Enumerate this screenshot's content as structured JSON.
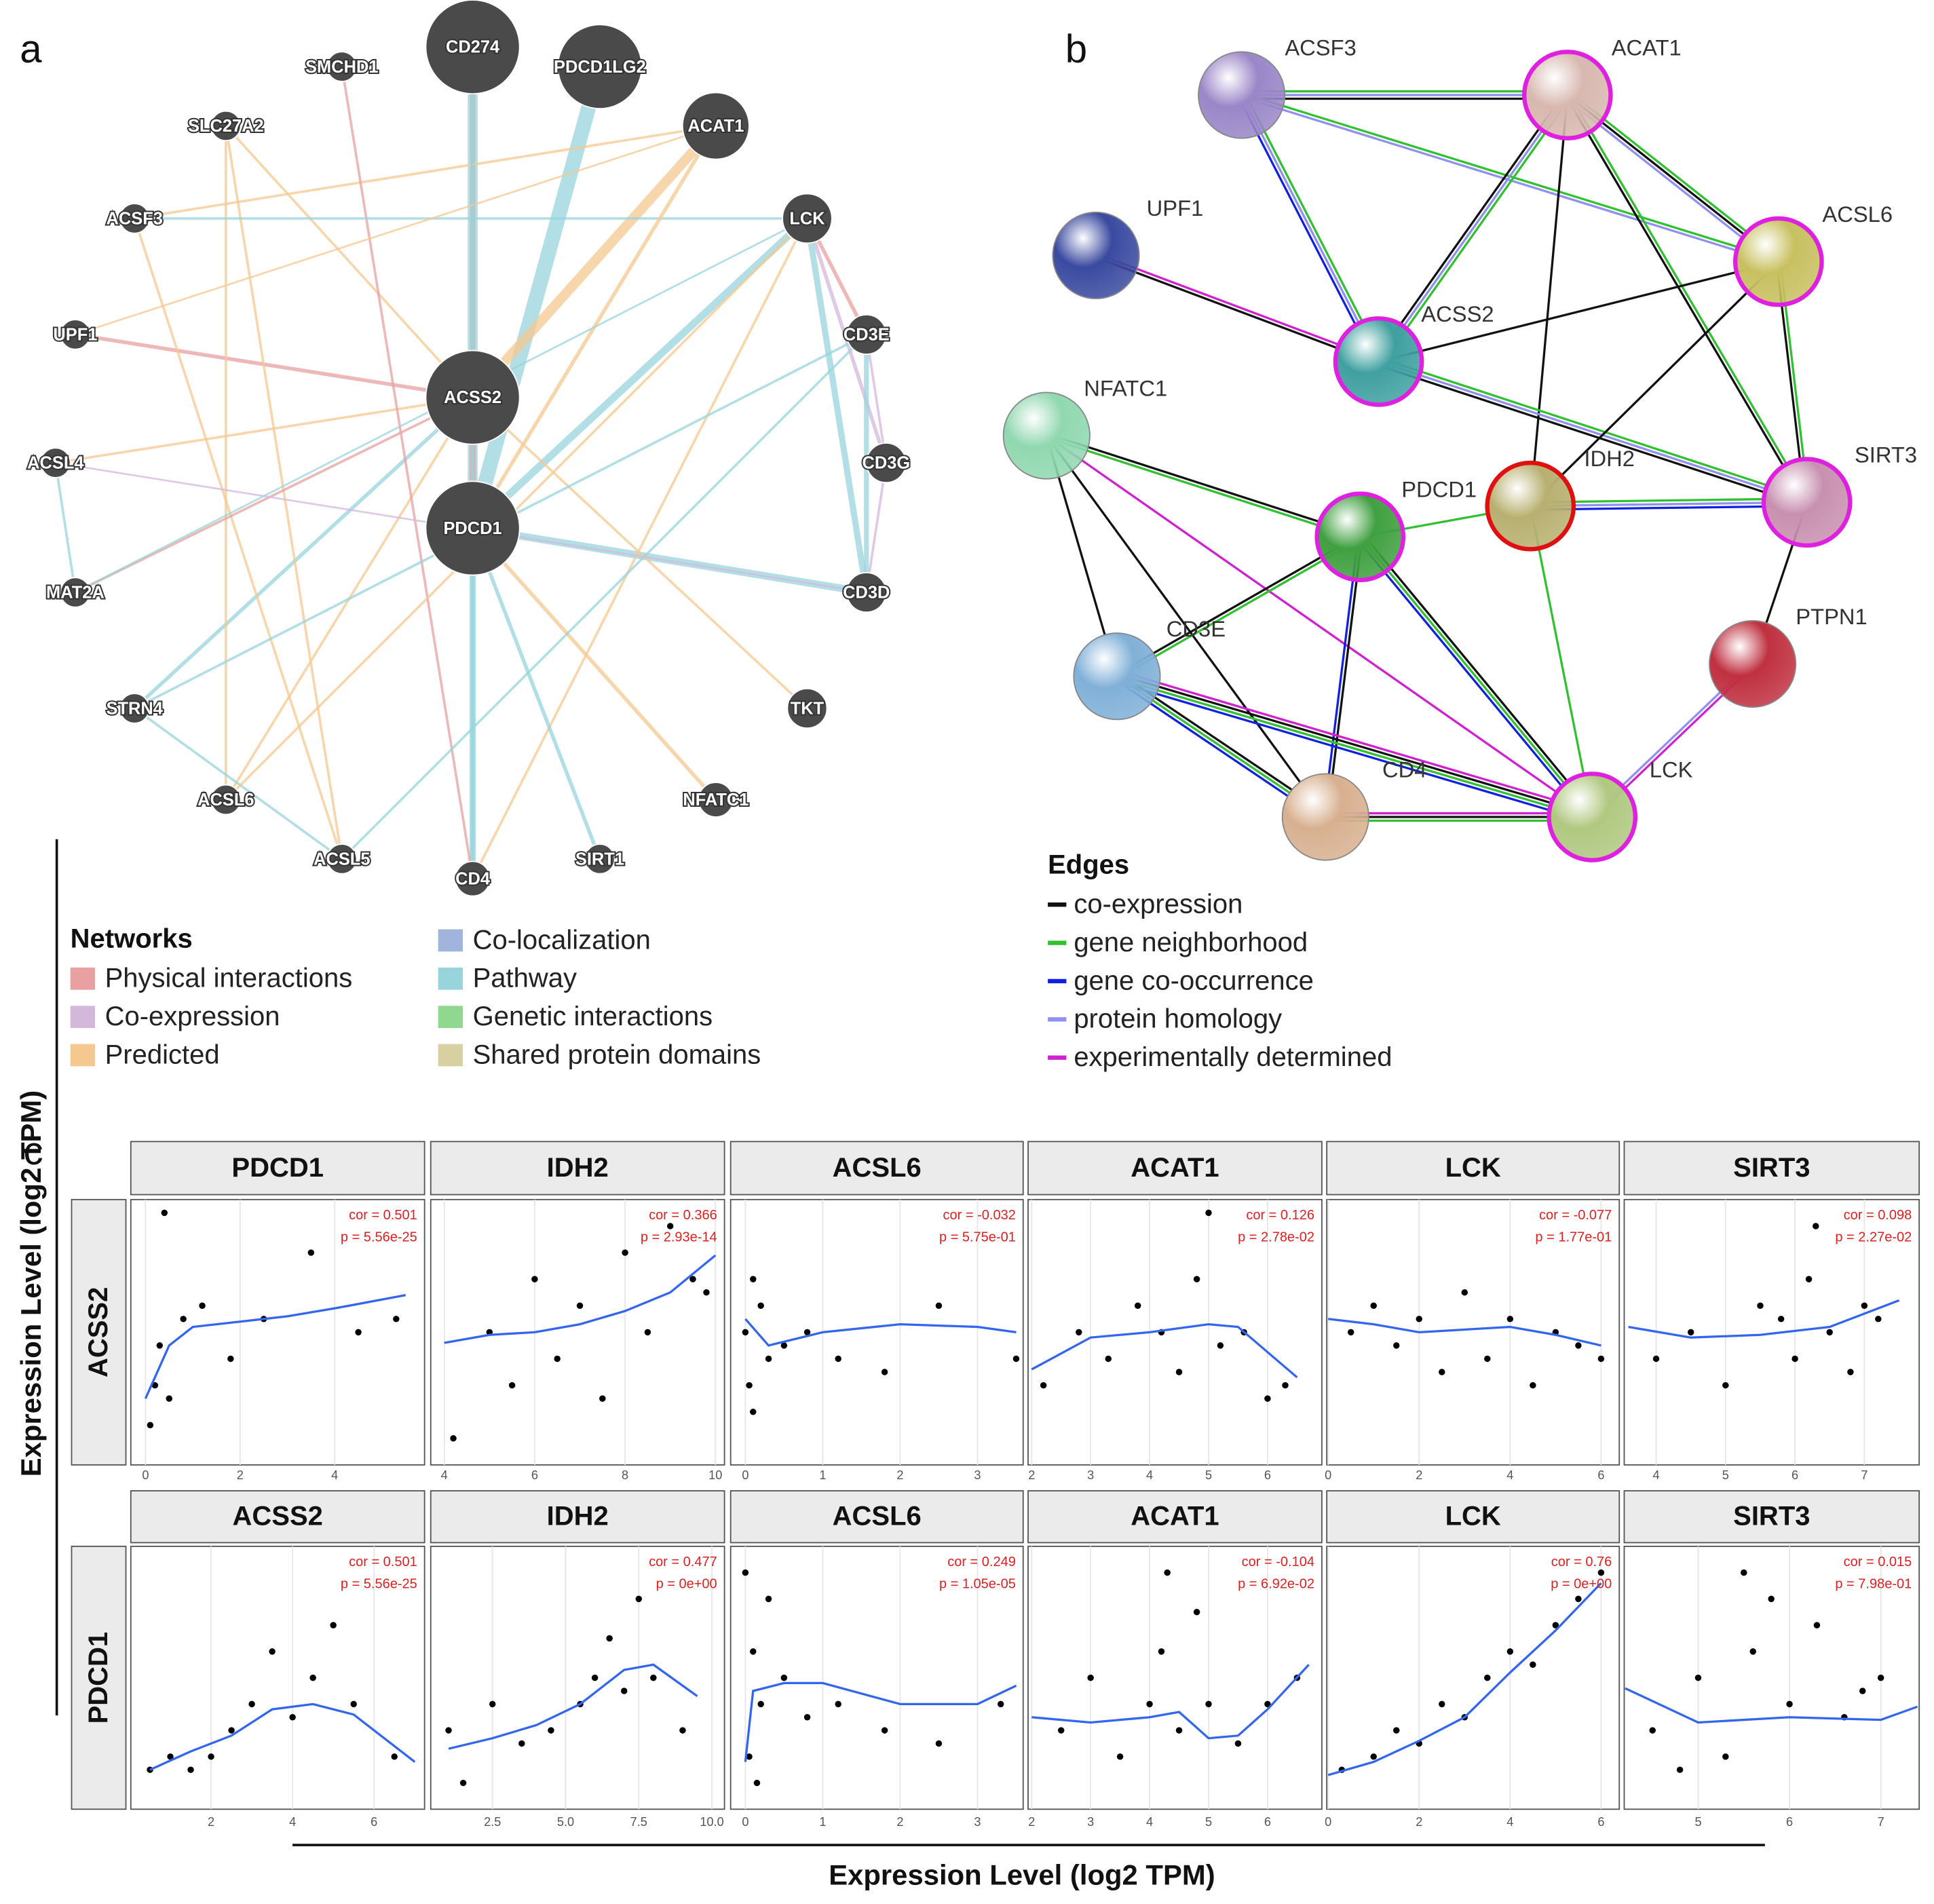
{
  "panel_a": {
    "letter": "a",
    "nodes": [
      "CD274",
      "PDCD1LG2",
      "SMCHD1",
      "ACAT1",
      "SLC27A2",
      "LCK",
      "ACSF3",
      "CD3E",
      "UPF1",
      "ACSS2",
      "CD3G",
      "ACSL4",
      "PDCD1",
      "CD3D",
      "MAT2A",
      "TKT",
      "STRN4",
      "NFATC1",
      "ACSL6",
      "SIRT1",
      "ACSL5",
      "CD4"
    ],
    "legend": {
      "title": "Networks",
      "items": [
        {
          "name": "Physical interactions",
          "color": "#e8a0a0"
        },
        {
          "name": "Co-expression",
          "color": "#d4b8dc"
        },
        {
          "name": "Predicted",
          "color": "#f5c890"
        },
        {
          "name": "Co-localization",
          "color": "#a0b4dc"
        },
        {
          "name": "Pathway",
          "color": "#98d4dc"
        },
        {
          "name": "Genetic interactions",
          "color": "#90d890"
        },
        {
          "name": "Shared protein domains",
          "color": "#d8d0a0"
        }
      ]
    }
  },
  "panel_b": {
    "letter": "b",
    "nodes": [
      "ACSF3",
      "ACAT1",
      "UPF1",
      "ACSL6",
      "ACSS2",
      "NFATC1",
      "IDH2",
      "SIRT3",
      "PDCD1",
      "PTPN1",
      "CD3E",
      "LCK",
      "CD4"
    ],
    "legend": {
      "title": "Edges",
      "items": [
        {
          "name": "co-expression",
          "color": "#111111"
        },
        {
          "name": "gene neighborhood",
          "color": "#30c030"
        },
        {
          "name": "gene co-occurrence",
          "color": "#1020e0"
        },
        {
          "name": "protein homology",
          "color": "#9090f0"
        },
        {
          "name": "experimentally determined",
          "color": "#d020d0"
        }
      ]
    }
  },
  "panel_c": {
    "letter": "c",
    "type": "scatter",
    "ylabel": "Expression Level (log2 TPM)",
    "xlabel": "Expression Level (log2 TPM)",
    "rows": [
      {
        "name": "ACSS2",
        "panels": [
          {
            "title": "PDCD1",
            "annotations": [
              "cor = 0.501",
              "p = 5.56e-25"
            ],
            "xlim": [
              -0.31,
              5.9
            ],
            "xticks": [
              0,
              2,
              4
            ],
            "ylim": [
              0,
              10
            ],
            "points": {
              "x": [
                0.1,
                0.2,
                0.3,
                0.5,
                0.8,
                1.2,
                1.8,
                2.5,
                3.5,
                4.5,
                5.3,
                0.4
              ],
              "y": [
                1.5,
                3,
                4.5,
                2.5,
                5.5,
                6,
                4,
                5.5,
                8,
                5,
                5.5,
                9.5
              ]
            },
            "fit": {
              "x": [
                0,
                0.5,
                1,
                2,
                3,
                4,
                5.5
              ],
              "y": [
                2.5,
                4.5,
                5.2,
                5.4,
                5.6,
                5.9,
                6.4
              ]
            }
          },
          {
            "title": "IDH2",
            "annotations": [
              "cor = 0.366",
              "p = 2.93e-14"
            ],
            "xlim": [
              3.7,
              10.2
            ],
            "xticks": [
              4,
              6,
              8,
              10
            ],
            "ylim": [
              0,
              10
            ],
            "points": {
              "x": [
                4.2,
                5,
                5.5,
                6,
                6.5,
                7,
                7.5,
                8,
                8.5,
                9,
                9.5,
                9.8
              ],
              "y": [
                1,
                5,
                3,
                7,
                4,
                6,
                2.5,
                8,
                5,
                9,
                7,
                6.5
              ]
            },
            "fit": {
              "x": [
                4,
                5,
                6,
                7,
                8,
                9,
                10
              ],
              "y": [
                4.6,
                4.9,
                5.0,
                5.3,
                5.8,
                6.5,
                7.9
              ]
            }
          },
          {
            "title": "ACSL6",
            "annotations": [
              "cor = -0.032",
              "p = 5.75e-01"
            ],
            "xlim": [
              -0.19,
              3.59
            ],
            "xticks": [
              0,
              1,
              2,
              3
            ],
            "ylim": [
              0,
              10
            ],
            "points": {
              "x": [
                0,
                0.05,
                0.1,
                0.1,
                0.2,
                0.3,
                0.5,
                0.8,
                1.2,
                1.8,
                2.5,
                3.5
              ],
              "y": [
                5,
                3,
                7,
                2,
                6,
                4,
                4.5,
                5,
                4,
                3.5,
                6,
                4
              ]
            },
            "fit": {
              "x": [
                0,
                0.3,
                1,
                2,
                3,
                3.5
              ],
              "y": [
                5.5,
                4.5,
                5,
                5.3,
                5.2,
                5
              ]
            }
          },
          {
            "title": "ACAT1",
            "annotations": [
              "cor = 0.126",
              "p = 2.78e-02"
            ],
            "xlim": [
              1.94,
              6.92
            ],
            "xticks": [
              2,
              3,
              4,
              5,
              6
            ],
            "ylim": [
              0,
              10
            ],
            "points": {
              "x": [
                2.2,
                2.8,
                3.3,
                3.8,
                4.2,
                4.5,
                4.8,
                5.2,
                5.6,
                6,
                6.3,
                5.0
              ],
              "y": [
                3,
                5,
                4,
                6,
                5,
                3.5,
                7,
                4.5,
                5,
                2.5,
                3,
                9.5
              ]
            },
            "fit": {
              "x": [
                2,
                3,
                4,
                5,
                5.5,
                6.5
              ],
              "y": [
                3.6,
                4.8,
                5.0,
                5.3,
                5.2,
                3.3
              ]
            }
          },
          {
            "title": "LCK",
            "annotations": [
              "cor = -0.077",
              "p = 1.77e-01"
            ],
            "xlim": [
              -0.03,
              6.4
            ],
            "xticks": [
              0,
              2,
              4,
              6
            ],
            "ylim": [
              0,
              10
            ],
            "points": {
              "x": [
                0.5,
                1,
                1.5,
                2,
                2.5,
                3,
                3.5,
                4,
                4.5,
                5,
                5.5,
                6
              ],
              "y": [
                5,
                6,
                4.5,
                5.5,
                3.5,
                6.5,
                4,
                5.5,
                3,
                5,
                4.5,
                4
              ]
            },
            "fit": {
              "x": [
                0,
                1,
                2,
                3,
                4,
                5,
                6
              ],
              "y": [
                5.5,
                5.3,
                5.0,
                5.1,
                5.2,
                4.9,
                4.5
              ]
            }
          },
          {
            "title": "SIRT3",
            "annotations": [
              "cor = 0.098",
              "p = 2.27e-02"
            ],
            "xlim": [
              3.54,
              7.79
            ],
            "xticks": [
              4,
              5,
              6,
              7
            ],
            "ylim": [
              0,
              10
            ],
            "points": {
              "x": [
                4,
                4.5,
                5,
                5.5,
                5.8,
                6,
                6.2,
                6.5,
                6.8,
                7,
                7.2,
                6.3
              ],
              "y": [
                4,
                5,
                3,
                6,
                5.5,
                4,
                7,
                5,
                3.5,
                6,
                5.5,
                9
              ]
            },
            "fit": {
              "x": [
                3.6,
                4.5,
                5.5,
                6.5,
                7.5
              ],
              "y": [
                5.2,
                4.8,
                4.9,
                5.2,
                6.2
              ]
            }
          }
        ]
      },
      {
        "name": "PDCD1",
        "panels": [
          {
            "title": "ACSS2",
            "annotations": [
              "cor = 0.501",
              "p = 5.56e-25"
            ],
            "xlim": [
              0.03,
              7.24
            ],
            "xticks": [
              2,
              4,
              6
            ],
            "ylim": [
              0,
              10
            ],
            "points": {
              "x": [
                0.5,
                1,
                1.5,
                2,
                2.5,
                3,
                3.5,
                4,
                4.5,
                5,
                5.5,
                6.5
              ],
              "y": [
                1.5,
                2,
                1.5,
                2,
                3,
                4,
                6,
                3.5,
                5,
                7,
                4,
                2
              ]
            },
            "fit": {
              "x": [
                0.5,
                1.5,
                2.5,
                3.5,
                4.5,
                5.5,
                7
              ],
              "y": [
                1.5,
                2.2,
                2.8,
                3.8,
                4.0,
                3.6,
                1.8
              ]
            }
          },
          {
            "title": "IDH2",
            "annotations": [
              "cor = 0.477",
              "p = 0e+00"
            ],
            "xlim": [
              0.39,
              10.43
            ],
            "xticks": [
              {
                "value": 2.5,
                "label": "2.5"
              },
              {
                "value": 5,
                "label": "5.0"
              },
              {
                "value": 7.5,
                "label": "7.5"
              },
              {
                "value": 10,
                "label": "10.0"
              }
            ],
            "ylim": [
              0,
              10
            ],
            "points": {
              "x": [
                1,
                1.5,
                2.5,
                3.5,
                4.5,
                5.5,
                6,
                6.5,
                7,
                7.5,
                8,
                9
              ],
              "y": [
                3,
                1,
                4,
                2.5,
                3,
                4,
                5,
                6.5,
                4.5,
                8,
                5,
                3
              ]
            },
            "fit": {
              "x": [
                1,
                2.5,
                4,
                5.5,
                7,
                8,
                9.5
              ],
              "y": [
                2.3,
                2.7,
                3.2,
                4.0,
                5.3,
                5.5,
                4.3
              ]
            }
          },
          {
            "title": "ACSL6",
            "annotations": [
              "cor = 0.249",
              "p = 1.05e-05"
            ],
            "xlim": [
              -0.19,
              3.59
            ],
            "xticks": [
              0,
              1,
              2,
              3
            ],
            "ylim": [
              0,
              10
            ],
            "points": {
              "x": [
                0,
                0.05,
                0.1,
                0.15,
                0.2,
                0.3,
                0.5,
                0.8,
                1.2,
                1.8,
                2.5,
                3.3
              ],
              "y": [
                9,
                2,
                6,
                1,
                4,
                8,
                5,
                3.5,
                4,
                3,
                2.5,
                4
              ]
            },
            "fit": {
              "x": [
                0,
                0.1,
                0.5,
                1,
                2,
                3,
                3.5
              ],
              "y": [
                1.8,
                4.5,
                4.8,
                4.8,
                4.0,
                4.0,
                4.7
              ]
            }
          },
          {
            "title": "ACAT1",
            "annotations": [
              "cor = -0.104",
              "p = 6.92e-02"
            ],
            "xlim": [
              1.94,
              6.92
            ],
            "xticks": [
              2,
              3,
              4,
              5,
              6
            ],
            "ylim": [
              0,
              10
            ],
            "points": {
              "x": [
                2.5,
                3,
                3.5,
                4,
                4.2,
                4.5,
                4.8,
                5,
                5.5,
                6,
                6.5,
                4.3
              ],
              "y": [
                3,
                5,
                2,
                4,
                6,
                3,
                7.5,
                4,
                2.5,
                4,
                5,
                9
              ]
            },
            "fit": {
              "x": [
                2,
                3,
                4,
                4.5,
                5,
                5.5,
                6,
                6.7
              ],
              "y": [
                3.5,
                3.3,
                3.5,
                3.7,
                2.7,
                2.8,
                3.8,
                5.5
              ]
            }
          },
          {
            "title": "LCK",
            "annotations": [
              "cor = 0.76",
              "p = 0e+00"
            ],
            "xlim": [
              -0.03,
              6.4
            ],
            "xticks": [
              0,
              2,
              4,
              6
            ],
            "ylim": [
              0,
              10
            ],
            "points": {
              "x": [
                0.3,
                1,
                1.5,
                2,
                2.5,
                3,
                3.5,
                4,
                4.5,
                5,
                5.5,
                6
              ],
              "y": [
                1.5,
                2,
                3,
                2.5,
                4,
                3.5,
                5,
                6,
                5.5,
                7,
                8,
                9
              ]
            },
            "fit": {
              "x": [
                0,
                1,
                2,
                3,
                4,
                5,
                6
              ],
              "y": [
                1.3,
                1.8,
                2.6,
                3.5,
                5.2,
                6.8,
                8.6
              ]
            }
          },
          {
            "title": "SIRT3",
            "annotations": [
              "cor = 0.015",
              "p = 7.98e-01"
            ],
            "xlim": [
              4.19,
              7.42
            ],
            "xticks": [
              5,
              6,
              7
            ],
            "ylim": [
              0,
              10
            ],
            "points": {
              "x": [
                4.5,
                5,
                5.3,
                5.6,
                6,
                6.3,
                6.6,
                7,
                4.8,
                5.8,
                6.8,
                5.5
              ],
              "y": [
                3,
                5,
                2,
                6,
                4,
                7,
                3.5,
                5,
                1.5,
                8,
                4.5,
                9
              ]
            },
            "fit": {
              "x": [
                4.2,
                5,
                6,
                7,
                7.4
              ],
              "y": [
                4.6,
                3.3,
                3.5,
                3.4,
                3.9
              ]
            }
          }
        ]
      }
    ]
  }
}
